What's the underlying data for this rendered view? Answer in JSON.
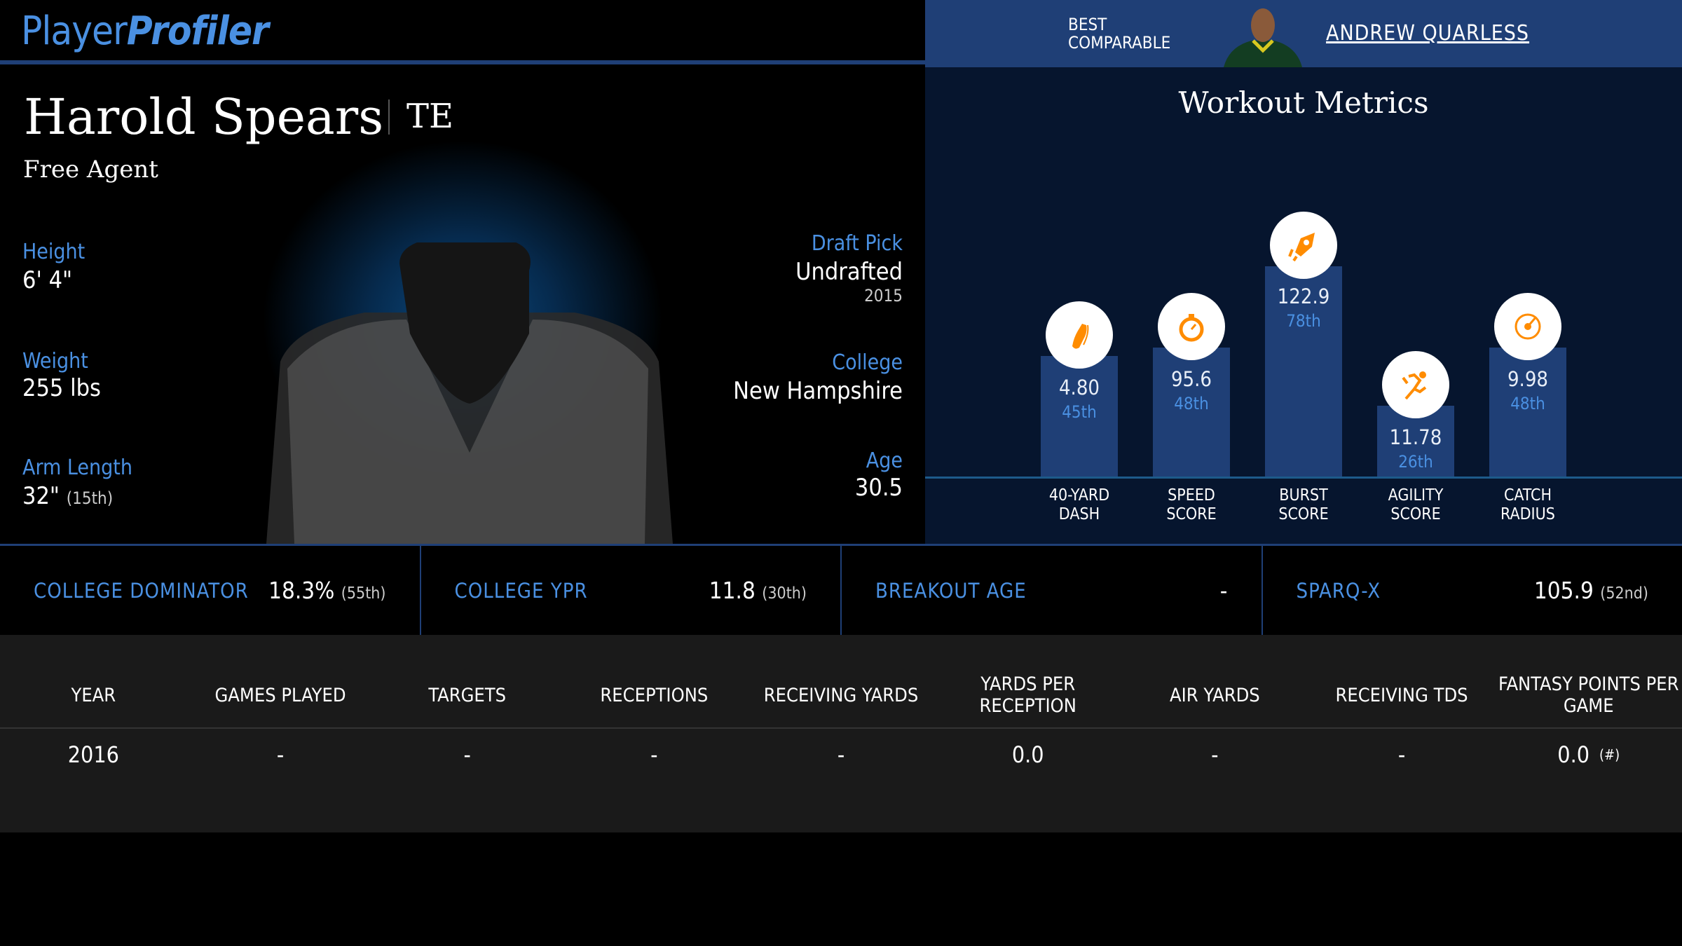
{
  "header": {
    "logo_part1": "Player",
    "logo_part2": "Profiler",
    "comparable_label_1": "BEST",
    "comparable_label_2": "COMPARABLE",
    "comparable_name": "ANDREW QUARLESS"
  },
  "player": {
    "name": "Harold Spears",
    "position": "TE",
    "team": "Free Agent",
    "height_label": "Height",
    "height": "6' 4\"",
    "weight_label": "Weight",
    "weight": "255 lbs",
    "arm_label": "Arm Length",
    "arm": "32\"",
    "arm_pct": "(15th)",
    "draft_label": "Draft Pick",
    "draft": "Undrafted",
    "draft_year": "2015",
    "college_label": "College",
    "college": "New Hampshire",
    "age_label": "Age",
    "age": "30.5"
  },
  "workout": {
    "title": "Workout Metrics",
    "accent": "#ff8c00",
    "metrics": [
      {
        "l1": "40-YARD",
        "l2": "DASH",
        "value": "4.80",
        "pct": "45th",
        "percentile": 45,
        "icon": "shoe-icon"
      },
      {
        "l1": "SPEED",
        "l2": "SCORE",
        "value": "95.6",
        "pct": "48th",
        "percentile": 48,
        "icon": "stopwatch-icon"
      },
      {
        "l1": "BURST",
        "l2": "SCORE",
        "value": "122.9",
        "pct": "78th",
        "percentile": 78,
        "icon": "rocket-icon"
      },
      {
        "l1": "AGILITY",
        "l2": "SCORE",
        "value": "11.78",
        "pct": "26th",
        "percentile": 26,
        "icon": "runner-icon"
      },
      {
        "l1": "CATCH",
        "l2": "RADIUS",
        "value": "9.98",
        "pct": "48th",
        "percentile": 48,
        "icon": "target-icon"
      }
    ]
  },
  "stats": [
    {
      "label": "COLLEGE DOMINATOR",
      "value": "18.3%",
      "pct": "(55th)"
    },
    {
      "label": "COLLEGE YPR",
      "value": "11.8",
      "pct": "(30th)"
    },
    {
      "label": "BREAKOUT AGE",
      "value": "-",
      "pct": ""
    },
    {
      "label": "SPARQ-X",
      "value": "105.9",
      "pct": "(52nd)"
    }
  ],
  "table": {
    "headers": [
      "YEAR",
      "GAMES PLAYED",
      "TARGETS",
      "RECEPTIONS",
      "RECEIVING YARDS",
      "YARDS PER RECEPTION",
      "AIR YARDS",
      "RECEIVING TDS",
      "FANTASY POINTS PER GAME"
    ],
    "rows": [
      [
        "2016",
        "-",
        "-",
        "-",
        "-",
        "0.0",
        "-",
        "-",
        "0.0"
      ]
    ],
    "fp_note": "(#)"
  }
}
